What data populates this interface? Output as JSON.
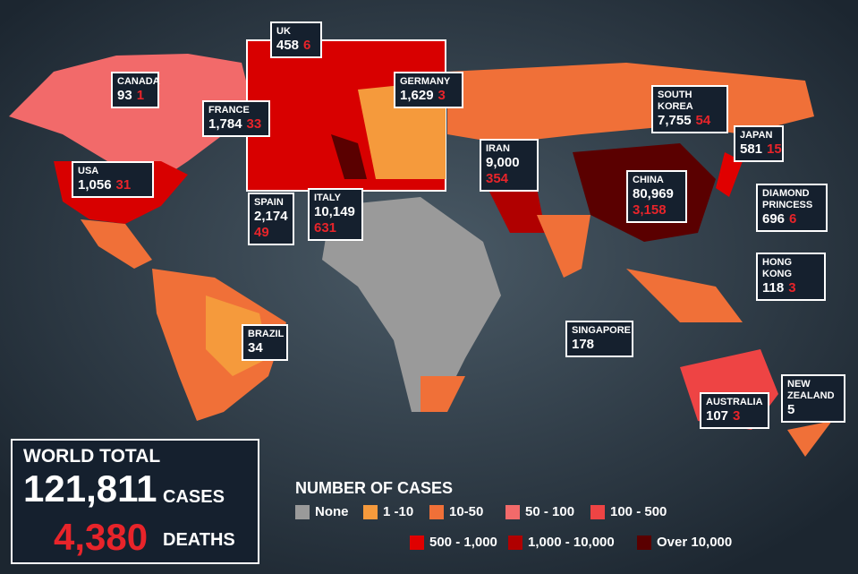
{
  "callouts": [
    {
      "name": "CANADA",
      "cases": "93",
      "deaths": "1"
    },
    {
      "name": "UK",
      "cases": "458",
      "deaths": "6"
    },
    {
      "name": "GERMANY",
      "cases": "1,629",
      "deaths": "3"
    },
    {
      "name": "FRANCE",
      "cases": "1,784",
      "deaths": "33"
    },
    {
      "name": "USA",
      "cases": "1,056",
      "deaths": "31"
    },
    {
      "name": "SPAIN",
      "cases": "2,174",
      "deaths": "49"
    },
    {
      "name": "ITALY",
      "cases": "10,149",
      "deaths": "631"
    },
    {
      "name": "IRAN",
      "cases": "9,000",
      "deaths": "354"
    },
    {
      "name": "CHINA",
      "cases": "80,969",
      "deaths": "3,158"
    },
    {
      "name": "SOUTH KOREA",
      "cases": "7,755",
      "deaths": "54"
    },
    {
      "name": "JAPAN",
      "cases": "581",
      "deaths": "15"
    },
    {
      "name": "DIAMOND PRINCESS",
      "cases": "696",
      "deaths": "6"
    },
    {
      "name": "HONG KONG",
      "cases": "118",
      "deaths": "3"
    },
    {
      "name": "SINGAPORE",
      "cases": "178"
    },
    {
      "name": "BRAZIL",
      "cases": "34"
    },
    {
      "name": "AUSTRALIA",
      "cases": "107",
      "deaths": "3"
    },
    {
      "name": "NEW ZEALAND",
      "cases": "5"
    }
  ],
  "world_total": {
    "title": "WORLD TOTAL",
    "cases": "121,811",
    "cases_label": "CASES",
    "deaths": "4,380",
    "deaths_label": "DEATHS"
  },
  "legend": {
    "title": "NUMBER OF CASES",
    "items": [
      {
        "label": "None",
        "color": "#9a9a9a"
      },
      {
        "label": "1 -10",
        "color": "#f59a3c"
      },
      {
        "label": "10-50",
        "color": "#f07038"
      },
      {
        "label": "50 - 100",
        "color": "#f26a6a"
      },
      {
        "label": "100 - 500",
        "color": "#ee4444"
      },
      {
        "label": "500 - 1,000",
        "color": "#e00000"
      },
      {
        "label": "1,000 - 10,000",
        "color": "#b00000"
      },
      {
        "label": "Over 10,000",
        "color": "#5a0000"
      }
    ]
  }
}
